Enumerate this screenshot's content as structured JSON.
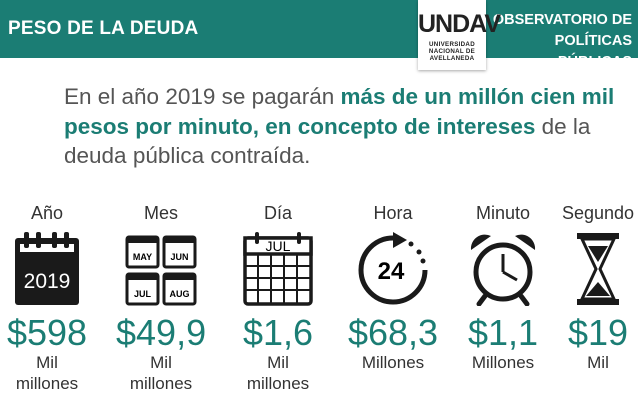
{
  "header": {
    "title": "PESO DE LA DEUDA",
    "logo_mark": "UNDAV",
    "logo_lines": [
      "UNIVERSIDAD",
      "NACIONAL DE",
      "AVELLANEDA"
    ],
    "observatorio_line1": "OBSERVATORIO DE",
    "observatorio_line2": "POLÍTICAS PÚBLICAS"
  },
  "headline": {
    "part1": "En el año 2019 se pagarán ",
    "bold1": "más de un millón cien mil pesos por minuto, en concepto de intereses",
    "part2": " de la deuda pública contraída."
  },
  "stats": [
    {
      "label": "Año",
      "value": "$598",
      "unit": "Mil millones",
      "icon": "calendar-year-icon",
      "icon_text": "2019"
    },
    {
      "label": "Mes",
      "value": "$49,9",
      "unit": "Mil millones",
      "icon": "calendar-months-icon",
      "icon_text": [
        "MAY",
        "JUN",
        "JUL",
        "AUG"
      ]
    },
    {
      "label": "Día",
      "value": "$1,6",
      "unit": "Mil millones",
      "icon": "calendar-day-icon",
      "icon_text": "JUL"
    },
    {
      "label": "Hora",
      "value": "$68,3",
      "unit": "Millones",
      "icon": "clock-24-icon",
      "icon_text": "24"
    },
    {
      "label": "Minuto",
      "value": "$1,1",
      "unit": "Millones",
      "icon": "alarm-clock-icon"
    },
    {
      "label": "Segundo",
      "value": "$19",
      "unit": "Mil",
      "icon": "hourglass-icon"
    }
  ],
  "colors": {
    "brand": "#1b7d74",
    "text": "#333333"
  }
}
